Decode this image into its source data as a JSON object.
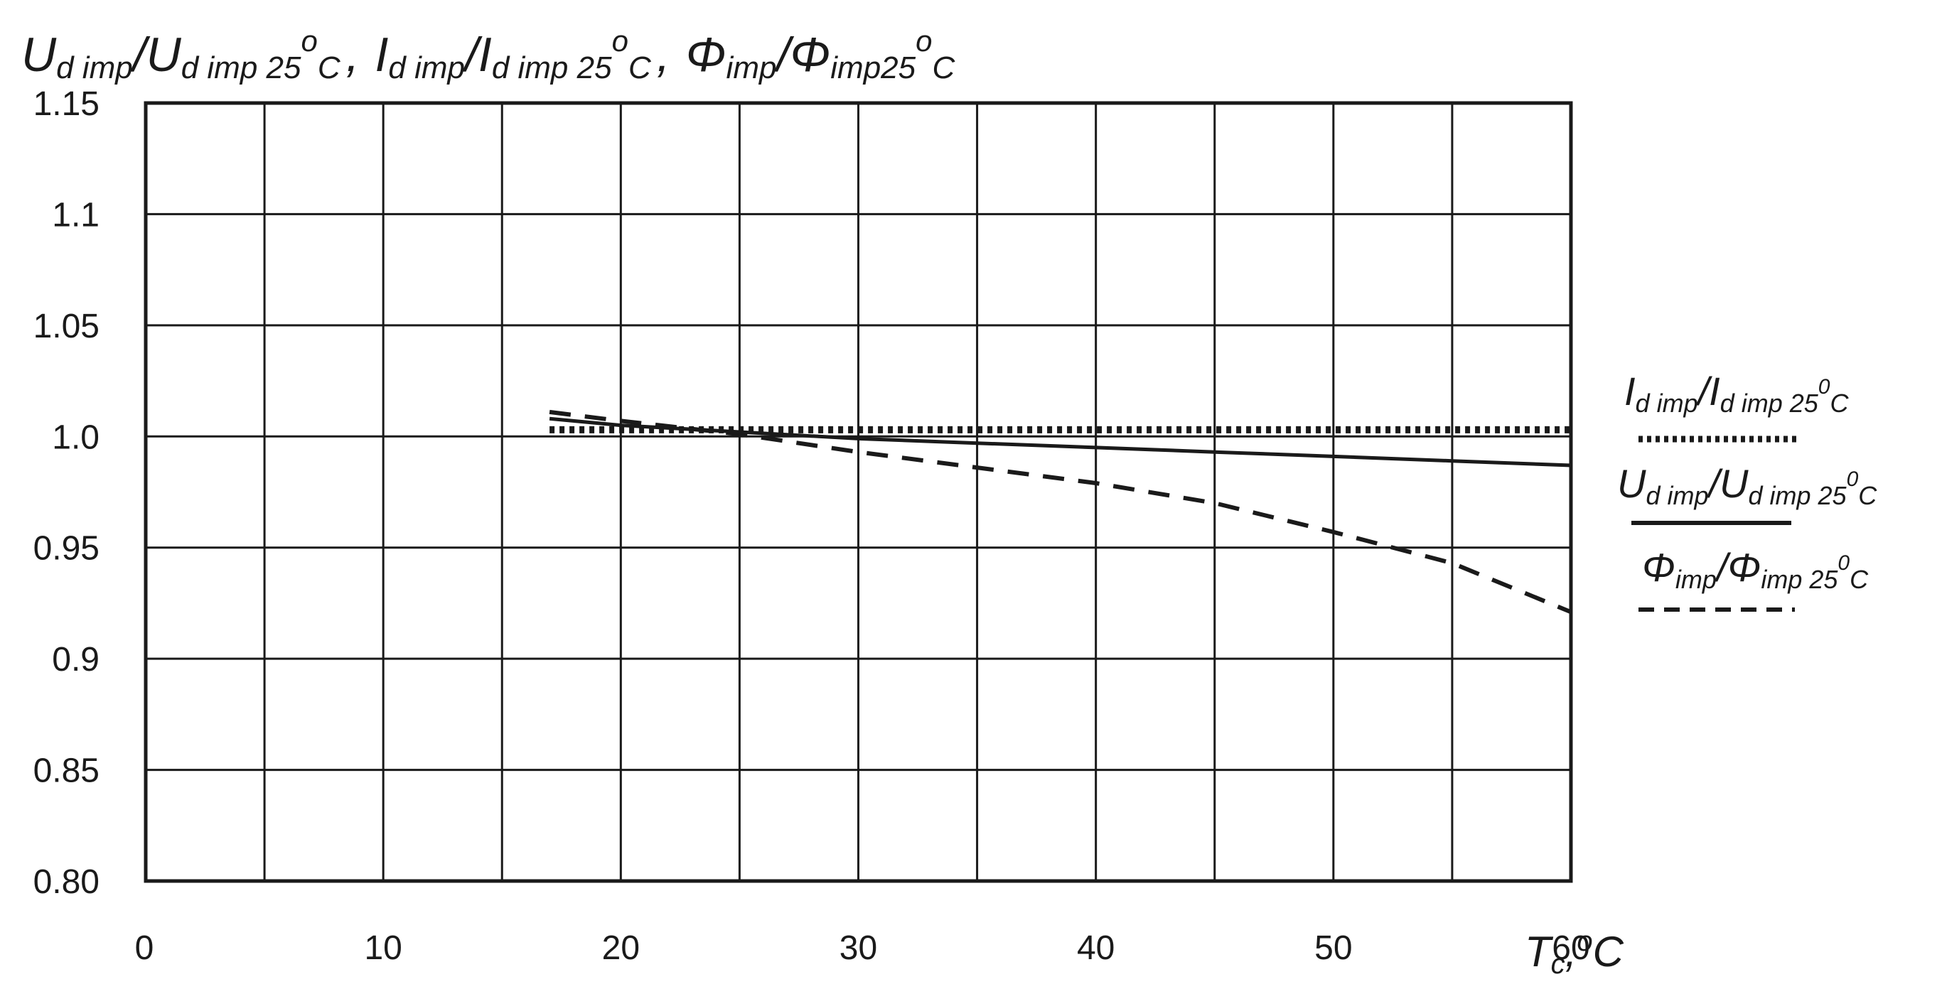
{
  "chart_data": {
    "type": "line",
    "title": {
      "u_main": "U",
      "u_sub": "d imp",
      "u_den_main": "/U",
      "u_den_sub": "d imp 25",
      "i_main": "I",
      "i_sub": "d imp",
      "i_den_main": "/I",
      "i_den_sub": "d imp 25",
      "phi_main": "Φ",
      "phi_sub": "imp",
      "phi_den_main": "/Φ",
      "phi_den_sub": "imp25",
      "deg": "o",
      "c_unit": "C",
      "comma": ","
    },
    "xlabel": {
      "var": "T",
      "sub": "c",
      "comma": ",",
      "deg": "o",
      "unit": "C"
    },
    "x_ticks": [
      "0",
      "10",
      "20",
      "30",
      "40",
      "50",
      "60"
    ],
    "y_ticks": [
      "0.80",
      "0.85",
      "0.9",
      "0.95",
      "1.0",
      "1.05",
      "1.1",
      "1.15"
    ],
    "xlim": [
      0,
      60
    ],
    "ylim": [
      0.8,
      1.15
    ],
    "x_grid_step": 5,
    "y_grid_step": 0.05,
    "series": [
      {
        "name": "I d imp / I d imp 25°C",
        "style": "dotted",
        "legend": {
          "main": "I",
          "sub": "d imp",
          "den_main": "/I",
          "den_sub": "d imp 25",
          "deg": "0",
          "unit": "C"
        },
        "x": [
          17,
          20,
          25,
          30,
          35,
          40,
          45,
          50,
          55,
          60
        ],
        "y": [
          1.003,
          1.003,
          1.003,
          1.003,
          1.003,
          1.003,
          1.003,
          1.003,
          1.003,
          1.003
        ]
      },
      {
        "name": "U d imp / U d imp 25°C",
        "style": "solid",
        "legend": {
          "main": "U",
          "sub": "d imp",
          "den_main": "/U",
          "den_sub": "d imp 25",
          "deg": "0",
          "unit": "C"
        },
        "x": [
          17,
          20,
          25,
          30,
          35,
          40,
          45,
          50,
          55,
          60
        ],
        "y": [
          1.008,
          1.005,
          1.002,
          0.999,
          0.997,
          0.995,
          0.993,
          0.991,
          0.989,
          0.987
        ]
      },
      {
        "name": "Φ imp / Φ imp 25°C",
        "style": "dashed",
        "legend": {
          "main": "Φ",
          "sub": "imp",
          "den_main": "/Φ",
          "den_sub": "imp 25",
          "deg": "0",
          "unit": "C"
        },
        "x": [
          17,
          20,
          25,
          30,
          35,
          40,
          45,
          50,
          55,
          60
        ],
        "y": [
          1.011,
          1.007,
          1.001,
          0.993,
          0.986,
          0.979,
          0.97,
          0.957,
          0.943,
          0.921
        ]
      }
    ],
    "colors": {
      "line": "#1a1a1a",
      "grid": "#1a1a1a",
      "background": "#ffffff"
    }
  }
}
